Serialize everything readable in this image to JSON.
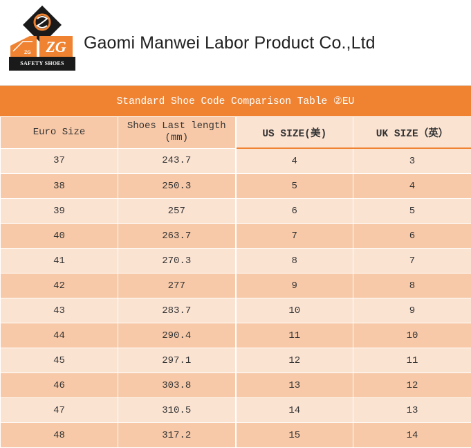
{
  "header": {
    "company_name": "Gaomi Manwei Labor Product Co.,Ltd",
    "logo": {
      "caption": "SAFETY SHOES",
      "mark": "ZG",
      "mark_small": "ZG"
    }
  },
  "table": {
    "title": "Standard Shoe Code Comparison Table ②EU",
    "columns": [
      "Euro Size",
      "Shoes Last length\n(mm)",
      "US SIZE(美)",
      "UK SIZE（英）"
    ],
    "rows": [
      [
        "37",
        "243.7",
        "4",
        "3"
      ],
      [
        "38",
        "250.3",
        "5",
        "4"
      ],
      [
        "39",
        "257",
        "6",
        "5"
      ],
      [
        "40",
        "263.7",
        "7",
        "6"
      ],
      [
        "41",
        "270.3",
        "8",
        "7"
      ],
      [
        "42",
        "277",
        "9",
        "8"
      ],
      [
        "43",
        "283.7",
        "10",
        "9"
      ],
      [
        "44",
        "290.4",
        "11",
        "10"
      ],
      [
        "45",
        "297.1",
        "12",
        "11"
      ],
      [
        "46",
        "303.8",
        "13",
        "12"
      ],
      [
        "47",
        "310.5",
        "14",
        "13"
      ],
      [
        "48",
        "317.2",
        "15",
        "14"
      ]
    ]
  },
  "colors": {
    "accent": "#ef8332",
    "row_light": "#fbe3d2",
    "row_dark": "#f7c9a8",
    "logo_dark": "#1a1a1a"
  }
}
